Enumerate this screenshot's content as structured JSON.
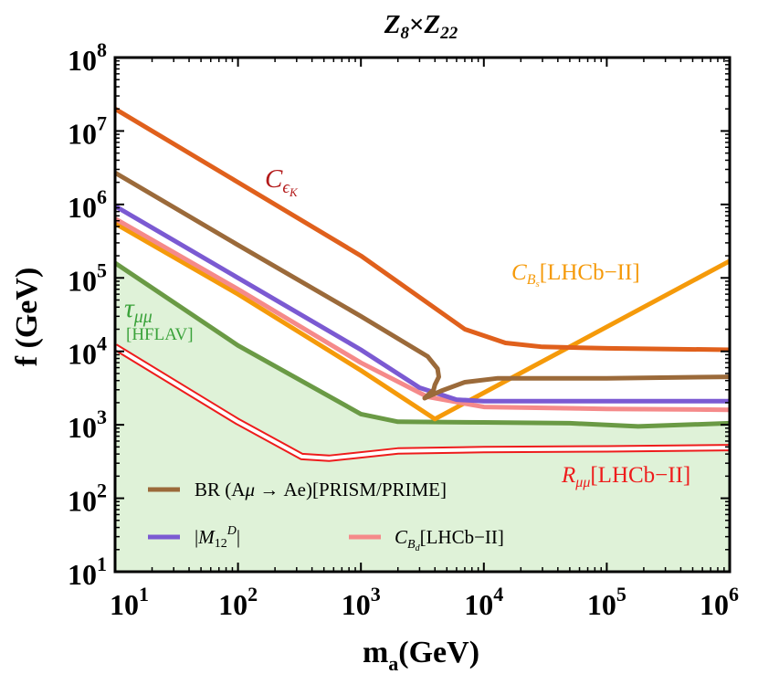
{
  "chart_data": {
    "type": "line",
    "title_main": "Z",
    "title_sub1": "8",
    "title_times": "×",
    "title_main2": "Z",
    "title_sub2": "22",
    "xlabel_main": "m",
    "xlabel_sub": "a",
    "xlabel_unit": "(GeV)",
    "ylabel": "f (GeV)",
    "xscale": "log",
    "yscale": "log",
    "xlim": [
      10,
      1000000
    ],
    "ylim": [
      10,
      100000000
    ],
    "x_ticks": [
      {
        "value": 10,
        "base": "10",
        "exp": "1"
      },
      {
        "value": 100,
        "base": "10",
        "exp": "2"
      },
      {
        "value": 1000,
        "base": "10",
        "exp": "3"
      },
      {
        "value": 10000,
        "base": "10",
        "exp": "4"
      },
      {
        "value": 100000,
        "base": "10",
        "exp": "5"
      },
      {
        "value": 1000000,
        "base": "10",
        "exp": "6"
      }
    ],
    "y_ticks": [
      {
        "value": 10,
        "base": "10",
        "exp": "1"
      },
      {
        "value": 100,
        "base": "10",
        "exp": "2"
      },
      {
        "value": 1000,
        "base": "10",
        "exp": "3"
      },
      {
        "value": 10000,
        "base": "10",
        "exp": "4"
      },
      {
        "value": 100000,
        "base": "10",
        "exp": "5"
      },
      {
        "value": 1000000,
        "base": "10",
        "exp": "6"
      },
      {
        "value": 10000000,
        "base": "10",
        "exp": "7"
      },
      {
        "value": 100000000,
        "base": "10",
        "exp": "8"
      }
    ],
    "series": [
      {
        "name": "tau_mumu_HFLAV",
        "color": "#6a9a45",
        "fill": "#dff2d8",
        "x": [
          10,
          100,
          1000,
          2000,
          10000,
          50000,
          180000,
          1000000
        ],
        "y": [
          160000,
          12000,
          1400,
          1100,
          1080,
          1050,
          950,
          1050
        ]
      },
      {
        "name": "R_mumu_LHCb_II",
        "color": "#ee1c1c",
        "style": "double",
        "x": [
          10,
          100,
          330,
          550,
          2000,
          10000,
          100000,
          1000000
        ],
        "y": [
          11500,
          1100,
          370,
          350,
          440,
          460,
          470,
          490
        ]
      },
      {
        "name": "C_Bs_LHCb_II",
        "color": "#f59a0a",
        "x": [
          10,
          100,
          1000,
          4000,
          1000000
        ],
        "y": [
          550000,
          60000,
          5500,
          1200,
          170000
        ]
      },
      {
        "name": "C_Bd_LHCb_II",
        "color": "#f58a8a",
        "x": [
          10,
          100,
          1000,
          3500,
          10000,
          100000,
          1000000
        ],
        "y": [
          640000,
          70000,
          7000,
          2400,
          1750,
          1650,
          1600
        ]
      },
      {
        "name": "M12D",
        "color": "#7b5ad2",
        "x": [
          10,
          100,
          1000,
          3000,
          6000,
          10000,
          100000,
          1000000
        ],
        "y": [
          950000,
          100000,
          10500,
          3200,
          2200,
          2100,
          2100,
          2100
        ]
      },
      {
        "name": "BR_Amu_Ae_PRISM_PRIME",
        "color": "#9b6a3a",
        "x": [
          10,
          100,
          1000,
          3500,
          4200,
          4300,
          4000,
          3900,
          3300,
          4500,
          7000,
          13000,
          100000,
          1000000
        ],
        "y": [
          2700000,
          280000,
          30000,
          8500,
          5800,
          4500,
          3500,
          3000,
          2300,
          2900,
          3800,
          4300,
          4300,
          4500
        ]
      },
      {
        "name": "C_epsilon_K",
        "color": "#e0601c",
        "x": [
          10,
          100,
          1000,
          7000,
          15000,
          30000,
          100000,
          1000000
        ],
        "y": [
          20000000,
          2000000,
          200000,
          20000,
          13000,
          11500,
          11000,
          10500
        ]
      }
    ],
    "annotations": {
      "c_eps_k": {
        "main": "C",
        "sub": "ϵ",
        "subsub": "K",
        "color": "#b31a1a"
      },
      "c_bs": {
        "main": "C",
        "sub": "B",
        "subsub": "s",
        "suffix": "[LHCb−II]",
        "color": "#f59a0a"
      },
      "tau": {
        "main": "τ",
        "sub": "μμ",
        "note": "[HFLAV]",
        "color": "#3aa23a"
      },
      "r_mumu": {
        "main": "R",
        "sub": "μμ",
        "suffix": "[LHCb−II]",
        "color": "#ee1c1c"
      }
    },
    "legend": {
      "placement": "bottom-left",
      "br": {
        "text1": "BR (A",
        "mu": "μ",
        "arrow": " → ",
        "text2": "Ae)[PRISM/PRIME]",
        "color": "#9b6a3a"
      },
      "m12": {
        "text1": "|",
        "m": "M",
        "sub": "12",
        "sup": "D",
        "text2": "|",
        "color": "#7b5ad2"
      },
      "cbd": {
        "main": "C",
        "sub": "B",
        "subsub": "d",
        "suffix": "[LHCb−II]",
        "color": "#f58a8a"
      }
    }
  }
}
